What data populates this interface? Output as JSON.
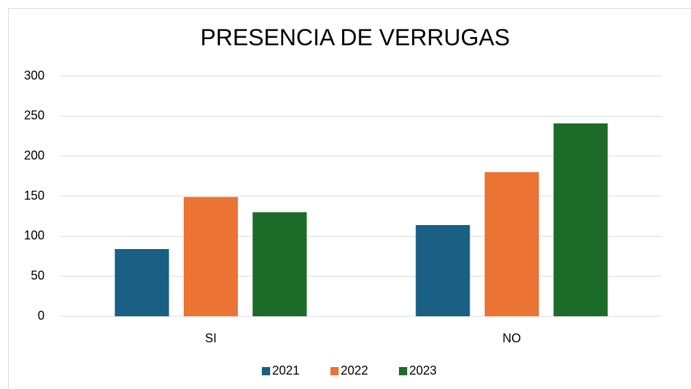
{
  "chart_data": {
    "type": "bar",
    "title": "PRESENCIA DE VERRUGAS",
    "categories": [
      "SI",
      "NO"
    ],
    "series": [
      {
        "name": "2021",
        "color": "#1a5f84",
        "values": [
          84,
          114
        ]
      },
      {
        "name": "2022",
        "color": "#eb7334",
        "values": [
          149,
          180
        ]
      },
      {
        "name": "2023",
        "color": "#1c6b28",
        "values": [
          130,
          241
        ]
      }
    ],
    "ylim": [
      0,
      300
    ],
    "yticks": [
      0,
      50,
      100,
      150,
      200,
      250,
      300
    ],
    "grid": true,
    "legend": "bottom"
  }
}
